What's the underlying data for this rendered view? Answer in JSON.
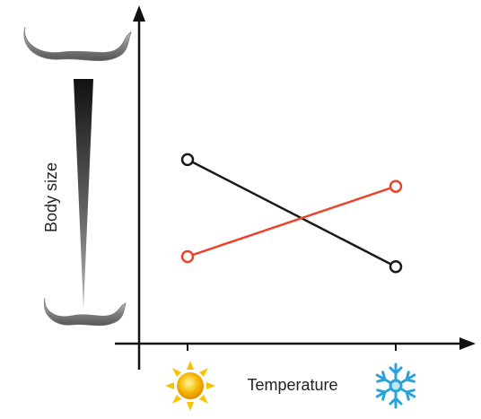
{
  "chart_data": {
    "type": "line",
    "y_label": "Body size",
    "x_label": "Temperature",
    "categories": [
      null,
      null
    ],
    "ylim": [
      0,
      1
    ],
    "series": [
      {
        "color": "#1a1a1a",
        "values": [
          0.55,
          0.23
        ]
      },
      {
        "color": "#e8452c",
        "values": [
          0.26,
          0.47
        ]
      }
    ]
  }
}
